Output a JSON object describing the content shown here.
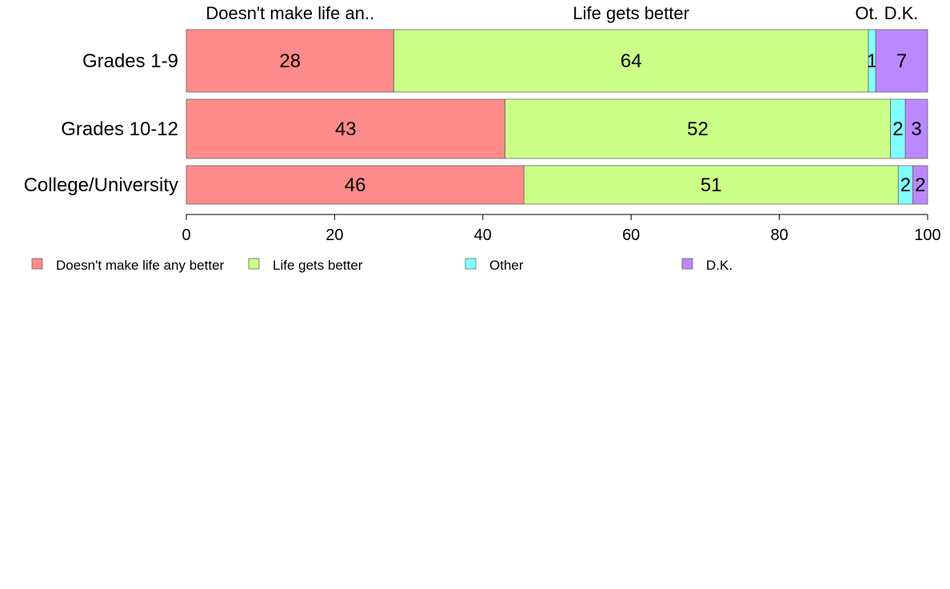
{
  "chart_data": {
    "type": "bar",
    "orientation": "horizontal",
    "stacked": true,
    "categories": [
      "Grades 1-9",
      "Grades 10-12",
      "College/University"
    ],
    "series": [
      {
        "name": "Doesn't make life any better",
        "values": [
          28,
          43,
          46
        ],
        "color": "#ff8a8a"
      },
      {
        "name": "Life gets better",
        "values": [
          64,
          52,
          51
        ],
        "color": "#ccff88"
      },
      {
        "name": "Other",
        "values": [
          1,
          2,
          2
        ],
        "color": "#80ffff"
      },
      {
        "name": "D.K.",
        "values": [
          7,
          3,
          2
        ],
        "color": "#bb88ff"
      }
    ],
    "data_labels": [
      [
        "28",
        "64",
        "1",
        "7"
      ],
      [
        "43",
        "52",
        "2",
        "3"
      ],
      [
        "46",
        "51",
        "2",
        "2"
      ]
    ],
    "column_headers": [
      "Doesn't make life an..",
      "Life gets better",
      "Ot.",
      "D.K."
    ],
    "xlim": [
      0,
      100
    ],
    "xticks": [
      "0",
      "20",
      "40",
      "60",
      "80",
      "100"
    ],
    "grid": false,
    "legend_position": "bottom"
  }
}
